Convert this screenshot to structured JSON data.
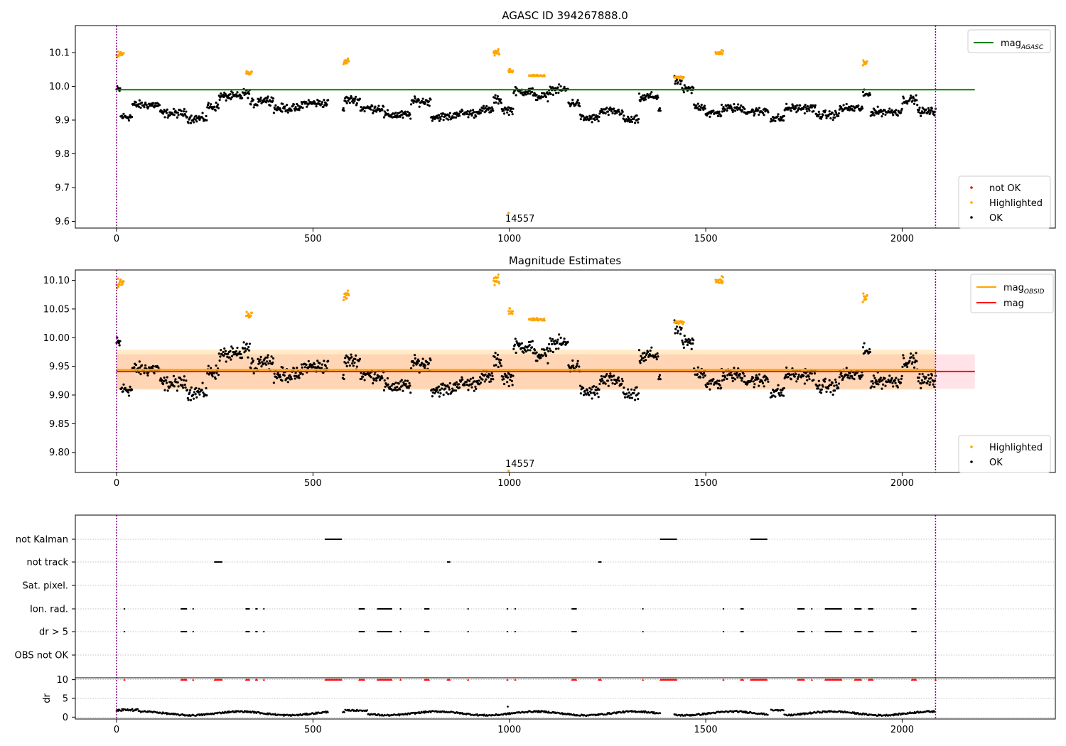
{
  "chart_data": [
    {
      "type": "scatter",
      "title": "AGASC ID 394267888.0",
      "xlim": [
        -105,
        2390
      ],
      "ylim": [
        9.58,
        10.18
      ],
      "xticks": [
        "0",
        "500",
        "1000",
        "1500",
        "2000"
      ],
      "yticks": [
        "9.6",
        "9.7",
        "9.8",
        "9.9",
        "10.0",
        "10.1"
      ],
      "mag_agasc": 9.99,
      "annotation": "14557",
      "legend_lines": [
        {
          "label": "mag",
          "sub": "AGASC",
          "color": "#008000"
        }
      ],
      "legend_points": [
        {
          "label": "not OK",
          "color": "#ff0000"
        },
        {
          "label": "Highlighted",
          "color": "#ffa500"
        },
        {
          "label": "OK",
          "color": "#000000"
        }
      ]
    },
    {
      "type": "scatter",
      "title": "Magnitude Estimates",
      "xlim": [
        -105,
        2390
      ],
      "ylim": [
        9.765,
        10.118
      ],
      "xticks": [
        "0",
        "500",
        "1000",
        "1500",
        "2000"
      ],
      "yticks": [
        "9.80",
        "9.85",
        "9.90",
        "9.95",
        "10.00",
        "10.05",
        "10.10"
      ],
      "mag_obsid": 9.944,
      "mag": 9.941,
      "band_obsid": [
        9.909,
        9.979
      ],
      "band_mag": [
        9.911,
        9.971
      ],
      "annotation": "14557",
      "legend_lines": [
        {
          "label": "mag",
          "sub": "OBSID",
          "color": "#ffa500"
        },
        {
          "label": "mag",
          "sub": "",
          "color": "#ff0000"
        }
      ],
      "legend_points": [
        {
          "label": "Highlighted",
          "color": "#ffa500"
        },
        {
          "label": "OK",
          "color": "#000000"
        }
      ]
    },
    {
      "type": "scatter",
      "categories": [
        "not Kalman",
        "not track",
        "Sat. pixel.",
        "Ion. rad.",
        "dr > 5",
        "OBS not OK"
      ],
      "flags": {
        "not Kalman": [
          [
            532,
            572
          ],
          [
            1385,
            1425
          ],
          [
            1615,
            1655
          ]
        ],
        "not track": [
          [
            250,
            268
          ],
          [
            843,
            850
          ],
          [
            1228,
            1233
          ]
        ],
        "Sat. pixel.": [],
        "Ion. rad.": [
          [
            20,
            20
          ],
          [
            165,
            178
          ],
          [
            195,
            195
          ],
          [
            330,
            338
          ],
          [
            355,
            358
          ],
          [
            375,
            375
          ],
          [
            618,
            632
          ],
          [
            665,
            700
          ],
          [
            723,
            723
          ],
          [
            785,
            795
          ],
          [
            895,
            895
          ],
          [
            995,
            995
          ],
          [
            1015,
            1015
          ],
          [
            1160,
            1170
          ],
          [
            1340,
            1340
          ],
          [
            1545,
            1545
          ],
          [
            1590,
            1595
          ],
          [
            1735,
            1750
          ],
          [
            1770,
            1770
          ],
          [
            1805,
            1845
          ],
          [
            1880,
            1895
          ],
          [
            1915,
            1925
          ],
          [
            2025,
            2035
          ]
        ],
        "dr > 5": [
          [
            20,
            20
          ],
          [
            165,
            178
          ],
          [
            195,
            195
          ],
          [
            330,
            338
          ],
          [
            355,
            358
          ],
          [
            375,
            375
          ],
          [
            618,
            632
          ],
          [
            665,
            700
          ],
          [
            723,
            723
          ],
          [
            785,
            795
          ],
          [
            895,
            895
          ],
          [
            995,
            995
          ],
          [
            1015,
            1015
          ],
          [
            1160,
            1170
          ],
          [
            1340,
            1340
          ],
          [
            1545,
            1545
          ],
          [
            1590,
            1595
          ],
          [
            1735,
            1750
          ],
          [
            1770,
            1770
          ],
          [
            1805,
            1845
          ],
          [
            1880,
            1895
          ],
          [
            1915,
            1925
          ],
          [
            2025,
            2035
          ]
        ],
        "OBS not OK": []
      },
      "xlim": [
        -105,
        2390
      ],
      "dr_ylabel": "dr",
      "dr_yticks": [
        "0",
        "5",
        "10"
      ],
      "dr_ylim": [
        -0.5,
        10.5
      ],
      "xticks": [
        "0",
        "500",
        "1000",
        "1500",
        "2000"
      ]
    }
  ]
}
